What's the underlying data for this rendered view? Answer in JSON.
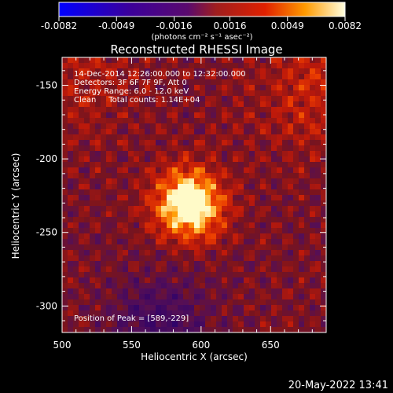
{
  "chart_data": {
    "type": "heatmap",
    "title": "Reconstructed RHESSI Image",
    "xlabel": "Heliocentric X (arcsec)",
    "ylabel": "Heliocentric Y (arcsec)",
    "xlim": [
      500,
      690
    ],
    "ylim": [
      -318,
      -131
    ],
    "x_ticks": [
      "500",
      "550",
      "600",
      "650"
    ],
    "x_tick_values": [
      500,
      550,
      600,
      650
    ],
    "y_ticks": [
      "-150",
      "-200",
      "-250",
      "-300"
    ],
    "y_tick_values": [
      -150,
      -200,
      -250,
      -300
    ],
    "colorbar": {
      "min": -0.0082,
      "max": 0.0082,
      "tick_labels": [
        "-0.0082",
        "-0.0049",
        "-0.0016",
        "0.0016",
        "0.0049",
        "0.0082"
      ],
      "tick_values": [
        -0.0082,
        -0.0049,
        -0.0016,
        0.0016,
        0.0049,
        0.0082
      ],
      "unit_label": "(photons cm⁻² s⁻¹ asec⁻²)"
    },
    "annotations": [
      "14-Dec-2014 12:26:00.000 to 12:32:00.000",
      "Detectors: 3F 6F 7F 9F, Att 0",
      "Energy Range: 6.0 - 12.0 keV",
      "Clean     Total counts: 1.14E+04"
    ],
    "peak_label": "Position of Peak = [589,-229]",
    "peak": [
      589,
      -229
    ]
  },
  "footer": {
    "timestamp": "20-May-2022 13:41"
  },
  "colors": {
    "background": "#000000",
    "text": "#ffffff"
  }
}
